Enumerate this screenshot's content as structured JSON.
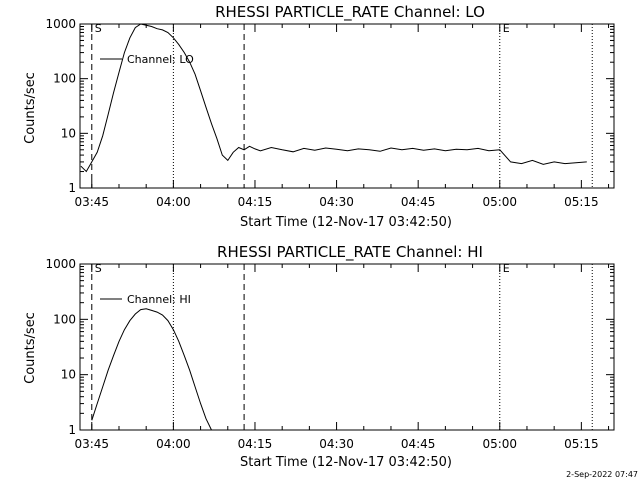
{
  "footer": {
    "timestamp": "2-Sep-2022 07:47"
  },
  "chart_data": [
    {
      "type": "line",
      "title": "RHESSI PARTICLE_RATE Channel: LO",
      "xlabel": "Start Time (12-Nov-17 03:42:50)",
      "ylabel": "Counts/sec",
      "y_scale": "log",
      "ylim": [
        1,
        1000
      ],
      "xlim": [
        "03:42:50",
        "05:21:00"
      ],
      "yticks": [
        "1",
        "10",
        "100",
        "1000"
      ],
      "xticks": [
        "03:45",
        "04:00",
        "04:15",
        "04:30",
        "04:45",
        "05:00",
        "05:15"
      ],
      "legend": "Channel: LO",
      "markers": [
        {
          "label": "S",
          "time": "03:45",
          "style": "dashed"
        },
        {
          "label": "",
          "time": "04:00",
          "style": "dotted"
        },
        {
          "label": "",
          "time": "04:13",
          "style": "dashed"
        },
        {
          "label": "E",
          "time": "05:00",
          "style": "dotted"
        },
        {
          "label": "",
          "time": "05:17",
          "style": "dotted"
        }
      ],
      "series": [
        {
          "name": "Channel: LO",
          "x": [
            "03:43",
            "03:44",
            "03:45",
            "03:46",
            "03:47",
            "03:48",
            "03:49",
            "03:50",
            "03:51",
            "03:52",
            "03:53",
            "03:54",
            "03:55",
            "03:56",
            "03:57",
            "03:58",
            "03:59",
            "04:00",
            "04:01",
            "04:02",
            "04:03",
            "04:04",
            "04:05",
            "04:06",
            "04:07",
            "04:08",
            "04:09",
            "04:10",
            "04:11",
            "04:12",
            "04:13",
            "04:14",
            "04:15",
            "04:16",
            "04:18",
            "04:20",
            "04:22",
            "04:24",
            "04:26",
            "04:28",
            "04:30",
            "04:32",
            "04:34",
            "04:36",
            "04:38",
            "04:40",
            "04:42",
            "04:44",
            "04:46",
            "04:48",
            "04:50",
            "04:52",
            "04:54",
            "04:56",
            "04:58",
            "05:00",
            "05:02",
            "05:04",
            "05:06",
            "05:08",
            "05:10",
            "05:12",
            "05:14",
            "05:16"
          ],
          "values": [
            2.5,
            2.0,
            3.0,
            4.5,
            9,
            22,
            55,
            130,
            300,
            560,
            860,
            1000,
            950,
            900,
            820,
            780,
            700,
            560,
            420,
            300,
            200,
            120,
            60,
            30,
            15,
            8,
            4,
            3.2,
            4.5,
            5.5,
            5.0,
            5.8,
            5.2,
            4.8,
            5.5,
            5.0,
            4.6,
            5.3,
            4.9,
            5.4,
            5.1,
            4.8,
            5.2,
            5.0,
            4.7,
            5.4,
            5.0,
            5.3,
            4.9,
            5.2,
            4.8,
            5.1,
            5.0,
            5.3,
            4.8,
            5.0,
            3.0,
            2.8,
            3.2,
            2.7,
            3.0,
            2.8,
            2.9,
            3.0
          ]
        }
      ]
    },
    {
      "type": "line",
      "title": "RHESSI PARTICLE_RATE Channel: HI",
      "xlabel": "Start Time (12-Nov-17 03:42:50)",
      "ylabel": "Counts/sec",
      "y_scale": "log",
      "ylim": [
        1,
        1000
      ],
      "xlim": [
        "03:42:50",
        "05:21:00"
      ],
      "yticks": [
        "1",
        "10",
        "100",
        "1000"
      ],
      "xticks": [
        "03:45",
        "04:00",
        "04:15",
        "04:30",
        "04:45",
        "05:00",
        "05:15"
      ],
      "legend": "Channel: HI",
      "markers": [
        {
          "label": "S",
          "time": "03:45",
          "style": "dashed"
        },
        {
          "label": "",
          "time": "04:00",
          "style": "dotted"
        },
        {
          "label": "",
          "time": "04:13",
          "style": "dashed"
        },
        {
          "label": "E",
          "time": "05:00",
          "style": "dotted"
        },
        {
          "label": "",
          "time": "05:17",
          "style": "dotted"
        }
      ],
      "series": [
        {
          "name": "Channel: HI",
          "x": [
            "03:45",
            "03:46",
            "03:47",
            "03:48",
            "03:49",
            "03:50",
            "03:51",
            "03:52",
            "03:53",
            "03:54",
            "03:55",
            "03:56",
            "03:57",
            "03:58",
            "03:59",
            "04:00",
            "04:01",
            "04:02",
            "04:03",
            "04:04",
            "04:05",
            "04:06",
            "04:07"
          ],
          "values": [
            1.5,
            3,
            6,
            12,
            22,
            40,
            65,
            95,
            125,
            150,
            155,
            145,
            135,
            120,
            95,
            65,
            40,
            22,
            12,
            6,
            3,
            1.6,
            1.0
          ]
        }
      ]
    }
  ]
}
